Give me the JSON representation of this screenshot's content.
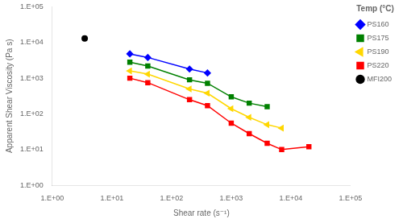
{
  "chart_data": {
    "type": "line",
    "x_label": "Shear rate (s⁻¹)",
    "y_label": "Apparent Shear Viscosity (Pa s)",
    "legend_title": "Temp (°C)",
    "log": true,
    "grid": false,
    "legend": "right",
    "xlim": [
      1,
      100000
    ],
    "ylim": [
      1,
      100000
    ],
    "xticks": [
      {
        "value": 1,
        "label": "1.E+00"
      },
      {
        "value": 10,
        "label": "1.E+01"
      },
      {
        "value": 100,
        "label": "1.E+02"
      },
      {
        "value": 1000,
        "label": "1.E+03"
      },
      {
        "value": 10000,
        "label": "1.E+04"
      },
      {
        "value": 100000,
        "label": "1.E+05"
      }
    ],
    "yticks": [
      {
        "value": 1,
        "label": "1.E+00"
      },
      {
        "value": 10,
        "label": "1.E+01"
      },
      {
        "value": 100,
        "label": "1.E+02"
      },
      {
        "value": 1000,
        "label": "1.E+03"
      },
      {
        "value": 10000,
        "label": "1.E+04"
      },
      {
        "value": 100000,
        "label": "1.E+05"
      }
    ],
    "series": [
      {
        "name": "PS160",
        "color": "#0000FF",
        "marker": "diamond",
        "line_style": "solid",
        "x": [
          20,
          40,
          200,
          400
        ],
        "values": [
          4800,
          3800,
          1800,
          1400
        ]
      },
      {
        "name": "PS175",
        "color": "#008000",
        "marker": "square",
        "line_style": "solid",
        "x": [
          20,
          40,
          200,
          400,
          1000,
          2000,
          4000
        ],
        "values": [
          2800,
          2200,
          900,
          720,
          300,
          200,
          160
        ]
      },
      {
        "name": "PS190",
        "color": "#FFD700",
        "marker": "triangle-left",
        "line_style": "solid",
        "x": [
          20,
          40,
          200,
          400,
          1000,
          2000,
          4000,
          7000
        ],
        "values": [
          1600,
          1300,
          500,
          380,
          140,
          80,
          50,
          40
        ]
      },
      {
        "name": "PS220",
        "color": "#FF0000",
        "marker": "square",
        "line_style": "solid",
        "x": [
          20,
          40,
          200,
          400,
          1000,
          2000,
          4000,
          7000,
          20000
        ],
        "values": [
          1000,
          750,
          250,
          170,
          55,
          28,
          15,
          10,
          12
        ]
      },
      {
        "name": "MFI200",
        "color": "#000000",
        "marker": "circle",
        "line_style": "none",
        "x": [
          3.5
        ],
        "values": [
          13000
        ]
      }
    ]
  }
}
